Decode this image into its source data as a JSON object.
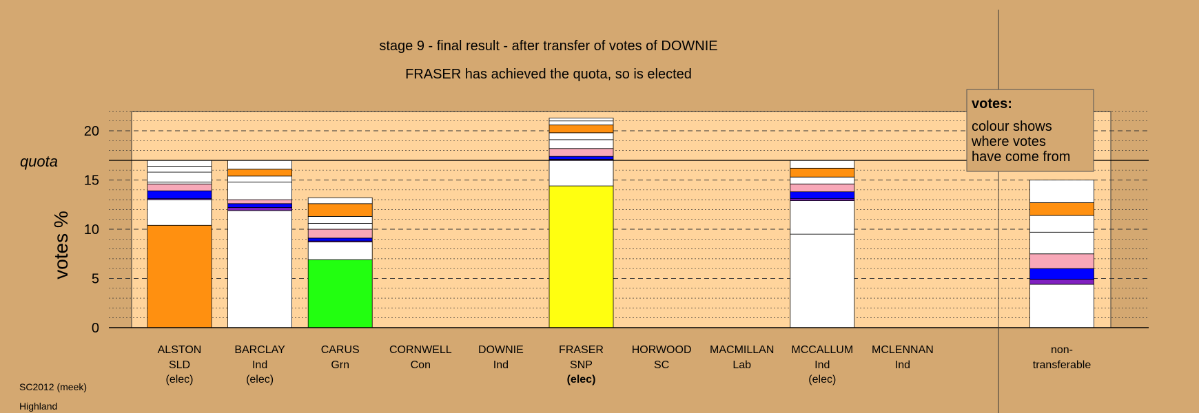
{
  "chart_data": {
    "type": "bar",
    "title": "stage 9 - final result - after transfer of votes of DOWNIE",
    "subtitle": "FRASER has achieved the quota, so is elected",
    "ylabel": "votes %",
    "quota_label": "quota",
    "quota_value": 17.0,
    "ylim": [
      0,
      20
    ],
    "yticks": [
      "0",
      "5",
      "10",
      "15",
      "20"
    ],
    "grid": "dashed major lines every 5, dotted minor lines every 1",
    "stack_order": "bottom to top",
    "categories": [
      {
        "name": "ALSTON",
        "party": "SLD",
        "status": "(elec)",
        "status_bold": false
      },
      {
        "name": "BARCLAY",
        "party": "Ind",
        "status": "(elec)",
        "status_bold": false
      },
      {
        "name": "CARUS",
        "party": "Grn",
        "status": "",
        "status_bold": false
      },
      {
        "name": "CORNWELL",
        "party": "Con",
        "status": "",
        "status_bold": false
      },
      {
        "name": "DOWNIE",
        "party": "Ind",
        "status": "",
        "status_bold": false
      },
      {
        "name": "FRASER",
        "party": "SNP",
        "status": "(elec)",
        "status_bold": true
      },
      {
        "name": "HORWOOD",
        "party": "SC",
        "status": "",
        "status_bold": false
      },
      {
        "name": "MACMILLAN",
        "party": "Lab",
        "status": "",
        "status_bold": false
      },
      {
        "name": "MCCALLUM",
        "party": "Ind",
        "status": "(elec)",
        "status_bold": false
      },
      {
        "name": "MCLENNAN",
        "party": "Ind",
        "status": "",
        "status_bold": false
      }
    ],
    "nontransferable_label_1": "non-",
    "nontransferable_label_2": "transferable",
    "bars": [
      {
        "segments": [
          {
            "value": 10.4,
            "color": "#ff9010"
          },
          {
            "value": 2.6,
            "color": "#ffffff"
          },
          {
            "value": 0.1,
            "color": "#8020c0"
          },
          {
            "value": 0.8,
            "color": "#0000ff"
          },
          {
            "value": 0.7,
            "color": "#f8a8b8"
          },
          {
            "value": 0.2,
            "color": "#ffffff"
          },
          {
            "value": 1.0,
            "color": "#ffffff"
          },
          {
            "value": 0.6,
            "color": "#ffffff"
          },
          {
            "value": 0.6,
            "color": "#ffffff"
          }
        ]
      },
      {
        "segments": [
          {
            "value": 11.9,
            "color": "#ffffff"
          },
          {
            "value": 0.3,
            "color": "#8020c0"
          },
          {
            "value": 0.4,
            "color": "#0000ff"
          },
          {
            "value": 0.4,
            "color": "#f8a8b8"
          },
          {
            "value": 1.8,
            "color": "#ffffff"
          },
          {
            "value": 0.6,
            "color": "#ffffff"
          },
          {
            "value": 0.7,
            "color": "#ff9010"
          },
          {
            "value": 0.9,
            "color": "#ffffff"
          }
        ]
      },
      {
        "segments": [
          {
            "value": 6.9,
            "color": "#22ff10"
          },
          {
            "value": 1.8,
            "color": "#ffffff"
          },
          {
            "value": 0.1,
            "color": "#8020c0"
          },
          {
            "value": 0.3,
            "color": "#0000ff"
          },
          {
            "value": 0.9,
            "color": "#f8a8b8"
          },
          {
            "value": 0.6,
            "color": "#ffffff"
          },
          {
            "value": 0.7,
            "color": "#ffffff"
          },
          {
            "value": 1.3,
            "color": "#ff9010"
          },
          {
            "value": 0.6,
            "color": "#ffffff"
          }
        ]
      },
      {
        "segments": []
      },
      {
        "segments": []
      },
      {
        "segments": [
          {
            "value": 14.4,
            "color": "#ffff10"
          },
          {
            "value": 2.6,
            "color": "#ffffff"
          },
          {
            "value": 0.1,
            "color": "#8020c0"
          },
          {
            "value": 0.3,
            "color": "#0000ff"
          },
          {
            "value": 0.8,
            "color": "#f8a8b8"
          },
          {
            "value": 0.9,
            "color": "#ffffff"
          },
          {
            "value": 0.7,
            "color": "#ffffff"
          },
          {
            "value": 0.8,
            "color": "#ff9010"
          },
          {
            "value": 0.4,
            "color": "#ffffff"
          },
          {
            "value": 0.3,
            "color": "#ffffff"
          }
        ]
      },
      {
        "segments": []
      },
      {
        "segments": []
      },
      {
        "segments": [
          {
            "value": 9.5,
            "color": "#ffffff"
          },
          {
            "value": 3.4,
            "color": "#ffffff"
          },
          {
            "value": 0.2,
            "color": "#8020c0"
          },
          {
            "value": 0.7,
            "color": "#0000ff"
          },
          {
            "value": 0.8,
            "color": "#f8a8b8"
          },
          {
            "value": 0.7,
            "color": "#ffffff"
          },
          {
            "value": 0.9,
            "color": "#ff9010"
          },
          {
            "value": 0.8,
            "color": "#ffffff"
          }
        ]
      },
      {
        "segments": []
      }
    ],
    "nontransferable": {
      "segments": [
        {
          "value": 4.4,
          "color": "#ffffff"
        },
        {
          "value": 0.5,
          "color": "#8020c0"
        },
        {
          "value": 1.1,
          "color": "#0000ff"
        },
        {
          "value": 1.5,
          "color": "#f8a8b8"
        },
        {
          "value": 2.2,
          "color": "#ffffff"
        },
        {
          "value": 1.7,
          "color": "#ffffff"
        },
        {
          "value": 1.3,
          "color": "#ff9010"
        },
        {
          "value": 2.3,
          "color": "#ffffff"
        }
      ]
    },
    "legend": {
      "placement": "top-right",
      "title": "votes:",
      "lines": [
        "colour shows",
        "where votes",
        "have come from"
      ]
    }
  },
  "footer": {
    "line1": "SC2012 (meek)",
    "line2": "Highland"
  },
  "colors": {
    "background": "#d4a871",
    "plot_area": "#ffd49c",
    "plot_area_shaded": "#e2b47f"
  }
}
